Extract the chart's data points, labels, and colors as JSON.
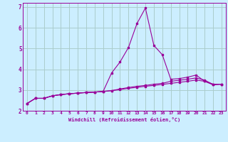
{
  "xlabel": "Windchill (Refroidissement éolien,°C)",
  "bg_color": "#cceeff",
  "grid_color": "#aacccc",
  "line_color": "#990099",
  "xlim": [
    -0.5,
    23.5
  ],
  "ylim": [
    2.0,
    7.2
  ],
  "yticks": [
    2,
    3,
    4,
    5,
    6,
    7
  ],
  "xticks": [
    0,
    1,
    2,
    3,
    4,
    5,
    6,
    7,
    8,
    9,
    10,
    11,
    12,
    13,
    14,
    15,
    16,
    17,
    18,
    19,
    20,
    21,
    22,
    23
  ],
  "line1": [
    2.35,
    2.6,
    2.6,
    2.72,
    2.78,
    2.82,
    2.85,
    2.88,
    2.9,
    2.93,
    2.97,
    3.02,
    3.08,
    3.13,
    3.18,
    3.22,
    3.27,
    3.32,
    3.37,
    3.42,
    3.48,
    3.42,
    3.25,
    3.28
  ],
  "line2": [
    2.35,
    2.6,
    2.6,
    2.72,
    2.78,
    2.82,
    2.85,
    2.88,
    2.9,
    2.93,
    3.82,
    4.35,
    5.05,
    6.2,
    6.95,
    5.15,
    4.7,
    3.52,
    3.55,
    3.62,
    3.72,
    3.42,
    3.28,
    3.28
  ],
  "line3": [
    2.35,
    2.6,
    2.6,
    2.72,
    2.78,
    2.82,
    2.85,
    2.88,
    2.9,
    2.93,
    2.97,
    3.05,
    3.12,
    3.18,
    3.22,
    3.28,
    3.32,
    3.42,
    3.47,
    3.52,
    3.58,
    3.48,
    3.27,
    3.28
  ]
}
